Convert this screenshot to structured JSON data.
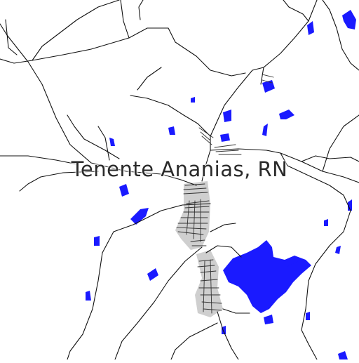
{
  "map": {
    "place_label": "Tenente Ananias, RN",
    "colors": {
      "background": "#ffffff",
      "roads": "#111111",
      "water": "#1a1aff",
      "urban_area": "#cfcfcf",
      "label": "#2a2a2a"
    }
  }
}
